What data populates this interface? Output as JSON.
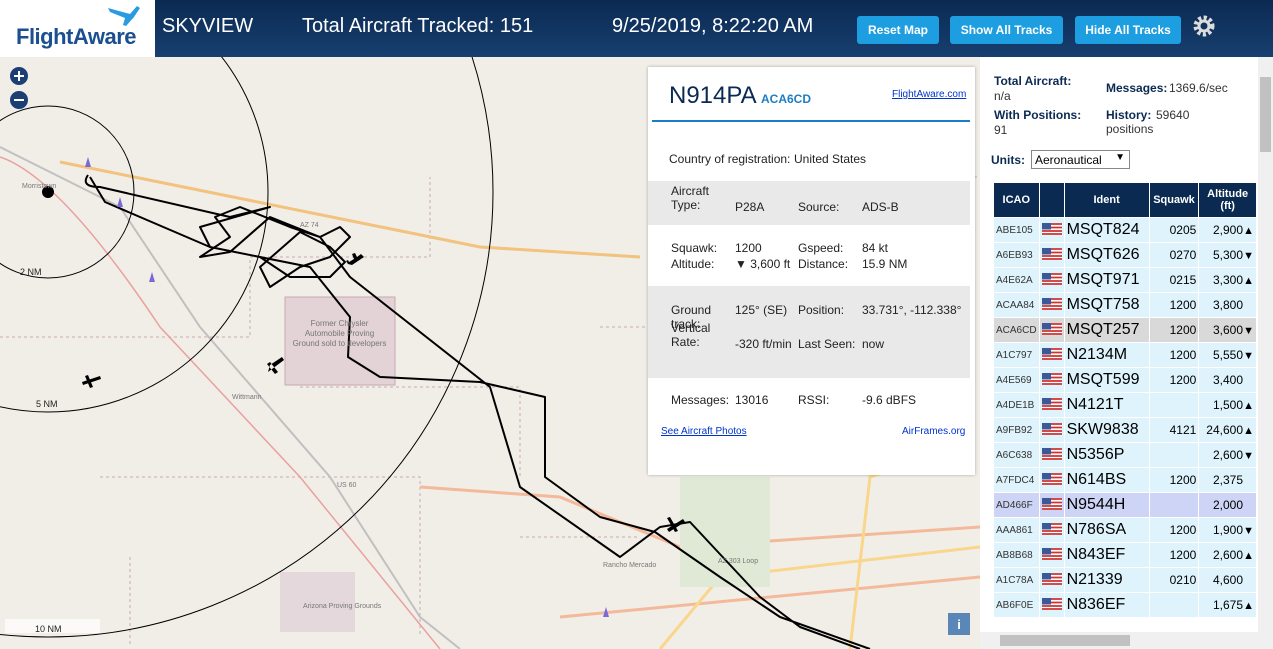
{
  "header": {
    "logo": "FlightAware",
    "app": "SKYVIEW",
    "total": "Total Aircraft Tracked: 151",
    "datetime": "9/25/2019, 8:22:20 AM",
    "buttons": [
      "Reset Map",
      "Show All Tracks",
      "Hide All Tracks"
    ]
  },
  "map": {
    "labels": [
      "2 NM",
      "5 NM",
      "10 NM",
      "Morristown",
      "Wittmann",
      "US 60",
      "AZ 74",
      "AZ 303 Loop",
      "Rancho Mercado",
      "Arizona Proving Grounds",
      "Former Chrysler Automobile Proving Ground sold to developers"
    ]
  },
  "info": {
    "tail": "N914PA",
    "hex": "ACA6CD",
    "link": "FlightAware.com",
    "country_label": "Country of registration:",
    "country": "United States",
    "fields": [
      [
        "Aircraft Type:",
        "P28A",
        "Source:",
        "ADS-B"
      ],
      [
        "Squawk:",
        "1200",
        "Gspeed:",
        "84 kt"
      ],
      [
        "Altitude:",
        "▼ 3,600 ft",
        "Distance:",
        "15.9 NM"
      ],
      [
        "Ground track:",
        "125° (SE)",
        "Position:",
        "33.731°, -112.338°"
      ],
      [
        "Vertical Rate:",
        "-320 ft/min",
        "Last Seen:",
        "now"
      ],
      [
        "Messages:",
        "13016",
        "RSSI:",
        "-9.6 dBFS"
      ]
    ],
    "photos": "See Aircraft Photos",
    "airframes": "AirFrames.org"
  },
  "sidebar": {
    "total_label": "Total Aircraft:",
    "total": "n/a",
    "messages_label": "Messages:",
    "messages": "1369.6/sec",
    "positions_label": "With Positions:",
    "positions": "91",
    "history_label": "History:",
    "history": "59640 positions",
    "units_label": "Units:",
    "units": "Aeronautical"
  },
  "table": {
    "headers": [
      "ICAO",
      "Ident",
      "Squawk",
      "Altitude (ft)"
    ],
    "rows": [
      {
        "icao": "ABE105",
        "ident": "MSQT824",
        "squawk": "0205",
        "altitude": "2,900",
        "trend": "▲"
      },
      {
        "icao": "A6EB93",
        "ident": "MSQT626",
        "squawk": "0270",
        "altitude": "5,300",
        "trend": "▼"
      },
      {
        "icao": "A4E62A",
        "ident": "MSQT971",
        "squawk": "0215",
        "altitude": "3,300",
        "trend": "▲"
      },
      {
        "icao": "ACAA84",
        "ident": "MSQT758",
        "squawk": "1200",
        "altitude": "3,800"
      },
      {
        "icao": "ACA6CD",
        "ident": "MSQT257",
        "squawk": "1200",
        "altitude": "3,600",
        "trend": "▼"
      },
      {
        "icao": "A1C797",
        "ident": "N2134M",
        "squawk": "1200",
        "altitude": "5,550",
        "trend": "▼"
      },
      {
        "icao": "A4E569",
        "ident": "MSQT599",
        "squawk": "1200",
        "altitude": "3,400"
      },
      {
        "icao": "A4DE1B",
        "ident": "N4121T",
        "squawk": null,
        "altitude": "1,500",
        "trend": "▲"
      },
      {
        "icao": "A9FB92",
        "ident": "SKW9838",
        "squawk": "4121",
        "altitude": "24,600",
        "trend": "▲"
      },
      {
        "icao": "A6C638",
        "ident": "N5356P",
        "squawk": null,
        "altitude": "2,600",
        "trend": "▼"
      },
      {
        "icao": "A7FDC4",
        "ident": "N614BS",
        "squawk": "1200",
        "altitude": "2,375"
      },
      {
        "icao": "AD466F",
        "ident": "N9544H",
        "squawk": null,
        "altitude": "2,000"
      },
      {
        "icao": "AAA861",
        "ident": "N786SA",
        "squawk": "1200",
        "altitude": "1,900",
        "trend": "▼"
      },
      {
        "icao": "AB8B68",
        "ident": "N843EF",
        "squawk": "1200",
        "altitude": "2,600",
        "trend": "▲"
      },
      {
        "icao": "A1C78A",
        "ident": "N21339",
        "squawk": "0210",
        "altitude": "4,600"
      },
      {
        "icao": "AB6F0E",
        "ident": "N836EF",
        "squawk": null,
        "altitude": "1,675",
        "trend": "▲"
      }
    ]
  }
}
